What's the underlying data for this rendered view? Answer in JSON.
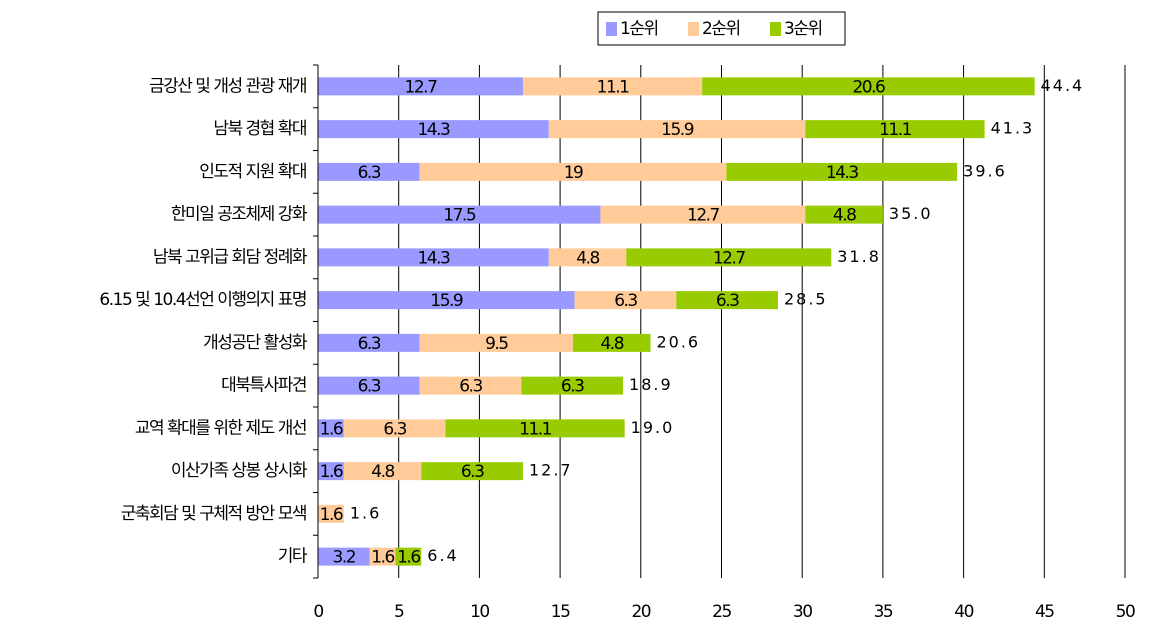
{
  "chart_data": {
    "type": "stacked-barh",
    "categories": [
      "금강산 및 개성 관광 재개",
      "남북 경협 확대",
      "인도적 지원 확대",
      "한미일 공조체제 강화",
      "남북 고위급 회담 정례화",
      "6.15 및 10.4선언 이행의지 표명",
      "개성공단 활성화",
      "대북특사파견",
      "교역 확대를 위한 제도 개선",
      "이산가족 상봉 상시화",
      "군축회담 및 구체적 방안 모색",
      "기타"
    ],
    "series": [
      {
        "name": "1순위",
        "color": "#9999ff",
        "values": [
          12.7,
          14.3,
          6.3,
          17.5,
          14.3,
          15.9,
          6.3,
          6.3,
          1.6,
          1.6,
          null,
          3.2
        ]
      },
      {
        "name": "2순위",
        "color": "#ffcc99",
        "values": [
          11.1,
          15.9,
          19,
          12.7,
          4.8,
          6.3,
          9.5,
          6.3,
          6.3,
          4.8,
          1.6,
          1.6
        ]
      },
      {
        "name": "3순위",
        "color": "#99cc00",
        "values": [
          20.6,
          11.1,
          14.3,
          4.8,
          12.7,
          6.3,
          4.8,
          6.3,
          11.1,
          6.3,
          null,
          1.6
        ]
      }
    ],
    "totals": {
      "values": [
        44.4,
        41.3,
        39.6,
        35.0,
        31.8,
        28.5,
        20.6,
        18.9,
        19.0,
        12.7,
        1.6,
        6.4
      ],
      "value_labels": [
        "44.4",
        "41.3",
        "39.6",
        "35.0",
        "31.8",
        "28.5",
        "20.6",
        "18.9",
        "19.0",
        "12.7",
        "1.6",
        "6.4"
      ]
    },
    "xlim": [
      0,
      50
    ],
    "xticks": [
      0,
      5,
      10,
      15,
      20,
      25,
      30,
      35,
      40,
      45,
      50
    ],
    "grid": true,
    "legend": "top"
  }
}
